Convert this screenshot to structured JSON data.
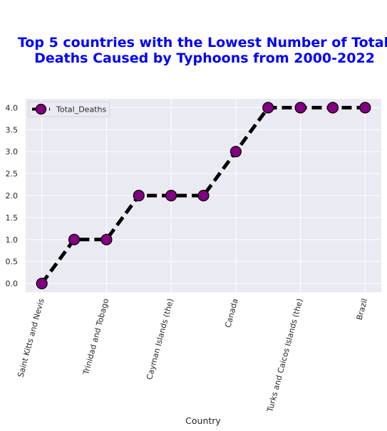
{
  "chart_data": {
    "type": "line",
    "title_lines": [
      "Top 5 countries with the Lowest Number of Total",
      "Deaths  Caused by Typhoons from 2000-2022"
    ],
    "xlabel": "Country",
    "ylabel": "",
    "ylim": [
      -0.2,
      4.2
    ],
    "yticks": [
      "0.0",
      "0.5",
      "1.0",
      "1.5",
      "2.0",
      "2.5",
      "3.0",
      "3.5",
      "4.0"
    ],
    "x_tick_labels": [
      "Saint Kitts and Nevis",
      "Trinidad and Tobago",
      "Cayman Islands (the)",
      "Canada",
      "Turks and Caicos Islands (the)",
      "Brazil"
    ],
    "x_tick_positions": [
      0,
      2,
      4,
      6,
      8,
      10
    ],
    "series": [
      {
        "name": "Total_Deaths",
        "x": [
          0,
          1,
          2,
          3,
          4,
          5,
          6,
          7,
          8,
          9,
          10
        ],
        "values": [
          0,
          1,
          1,
          2,
          2,
          2,
          3,
          4,
          4,
          4,
          4
        ]
      }
    ],
    "style": {
      "background": "#eaeaf2",
      "grid": true,
      "grid_color": "#ffffff",
      "line_color": "#000000",
      "line_style": "dashed",
      "marker": "circle",
      "marker_color": "#800080",
      "marker_edge_color": "#000000",
      "title_color": "#0000ff"
    },
    "legend_position": "top-left"
  }
}
